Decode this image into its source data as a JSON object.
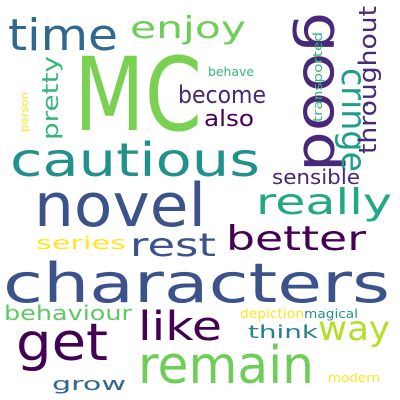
{
  "words": [
    {
      "text": "MC",
      "color": "#7ad151"
    },
    {
      "text": "characters",
      "color": "#3b528b"
    },
    {
      "text": "novel",
      "color": "#3b528b"
    },
    {
      "text": "cautious",
      "color": "#21918c"
    },
    {
      "text": "good",
      "color": "#482878"
    },
    {
      "text": "time",
      "color": "#31688e"
    },
    {
      "text": "get",
      "color": "#440154"
    },
    {
      "text": "remain",
      "color": "#6ece58"
    },
    {
      "text": "cringe",
      "color": "#1f9e89"
    },
    {
      "text": "enjoy",
      "color": "#6ece58"
    },
    {
      "text": "really",
      "color": "#22a884"
    },
    {
      "text": "better",
      "color": "#440154"
    },
    {
      "text": "rest",
      "color": "#3b528b"
    },
    {
      "text": "like",
      "color": "#440154"
    },
    {
      "text": "way",
      "color": "#b5de2b"
    },
    {
      "text": "throughout",
      "color": "#482878"
    },
    {
      "text": "pretty",
      "color": "#35b779"
    },
    {
      "text": "become",
      "color": "#482878"
    },
    {
      "text": "also",
      "color": "#440154"
    },
    {
      "text": "sensible",
      "color": "#482878"
    },
    {
      "text": "series",
      "color": "#fde725"
    },
    {
      "text": "behaviour",
      "color": "#5ec962"
    },
    {
      "text": "think",
      "color": "#26828e"
    },
    {
      "text": "grow",
      "color": "#31688e"
    },
    {
      "text": "transported",
      "color": "#35b779"
    },
    {
      "text": "behave",
      "color": "#35b779"
    },
    {
      "text": "person",
      "color": "#fde725"
    },
    {
      "text": "depiction",
      "color": "#fde725"
    },
    {
      "text": "magical",
      "color": "#21918c"
    },
    {
      "text": "modern",
      "color": "#fde725"
    }
  ]
}
